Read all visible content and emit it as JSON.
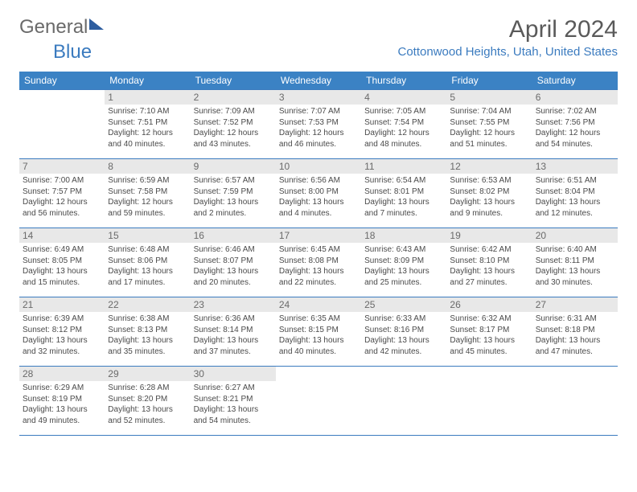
{
  "logo": {
    "general": "General",
    "blue": "Blue"
  },
  "title": "April 2024",
  "location": "Cottonwood Heights, Utah, United States",
  "colors": {
    "header_bg": "#3b82c4",
    "header_fg": "#ffffff",
    "daynum_bg": "#e8e8e8",
    "border": "#3b7bbf",
    "accent": "#3b7bbf"
  },
  "weekdays": [
    "Sunday",
    "Monday",
    "Tuesday",
    "Wednesday",
    "Thursday",
    "Friday",
    "Saturday"
  ],
  "weeks": [
    [
      null,
      {
        "n": "1",
        "sr": "7:10 AM",
        "ss": "7:51 PM",
        "dl": "12 hours and 40 minutes."
      },
      {
        "n": "2",
        "sr": "7:09 AM",
        "ss": "7:52 PM",
        "dl": "12 hours and 43 minutes."
      },
      {
        "n": "3",
        "sr": "7:07 AM",
        "ss": "7:53 PM",
        "dl": "12 hours and 46 minutes."
      },
      {
        "n": "4",
        "sr": "7:05 AM",
        "ss": "7:54 PM",
        "dl": "12 hours and 48 minutes."
      },
      {
        "n": "5",
        "sr": "7:04 AM",
        "ss": "7:55 PM",
        "dl": "12 hours and 51 minutes."
      },
      {
        "n": "6",
        "sr": "7:02 AM",
        "ss": "7:56 PM",
        "dl": "12 hours and 54 minutes."
      }
    ],
    [
      {
        "n": "7",
        "sr": "7:00 AM",
        "ss": "7:57 PM",
        "dl": "12 hours and 56 minutes."
      },
      {
        "n": "8",
        "sr": "6:59 AM",
        "ss": "7:58 PM",
        "dl": "12 hours and 59 minutes."
      },
      {
        "n": "9",
        "sr": "6:57 AM",
        "ss": "7:59 PM",
        "dl": "13 hours and 2 minutes."
      },
      {
        "n": "10",
        "sr": "6:56 AM",
        "ss": "8:00 PM",
        "dl": "13 hours and 4 minutes."
      },
      {
        "n": "11",
        "sr": "6:54 AM",
        "ss": "8:01 PM",
        "dl": "13 hours and 7 minutes."
      },
      {
        "n": "12",
        "sr": "6:53 AM",
        "ss": "8:02 PM",
        "dl": "13 hours and 9 minutes."
      },
      {
        "n": "13",
        "sr": "6:51 AM",
        "ss": "8:04 PM",
        "dl": "13 hours and 12 minutes."
      }
    ],
    [
      {
        "n": "14",
        "sr": "6:49 AM",
        "ss": "8:05 PM",
        "dl": "13 hours and 15 minutes."
      },
      {
        "n": "15",
        "sr": "6:48 AM",
        "ss": "8:06 PM",
        "dl": "13 hours and 17 minutes."
      },
      {
        "n": "16",
        "sr": "6:46 AM",
        "ss": "8:07 PM",
        "dl": "13 hours and 20 minutes."
      },
      {
        "n": "17",
        "sr": "6:45 AM",
        "ss": "8:08 PM",
        "dl": "13 hours and 22 minutes."
      },
      {
        "n": "18",
        "sr": "6:43 AM",
        "ss": "8:09 PM",
        "dl": "13 hours and 25 minutes."
      },
      {
        "n": "19",
        "sr": "6:42 AM",
        "ss": "8:10 PM",
        "dl": "13 hours and 27 minutes."
      },
      {
        "n": "20",
        "sr": "6:40 AM",
        "ss": "8:11 PM",
        "dl": "13 hours and 30 minutes."
      }
    ],
    [
      {
        "n": "21",
        "sr": "6:39 AM",
        "ss": "8:12 PM",
        "dl": "13 hours and 32 minutes."
      },
      {
        "n": "22",
        "sr": "6:38 AM",
        "ss": "8:13 PM",
        "dl": "13 hours and 35 minutes."
      },
      {
        "n": "23",
        "sr": "6:36 AM",
        "ss": "8:14 PM",
        "dl": "13 hours and 37 minutes."
      },
      {
        "n": "24",
        "sr": "6:35 AM",
        "ss": "8:15 PM",
        "dl": "13 hours and 40 minutes."
      },
      {
        "n": "25",
        "sr": "6:33 AM",
        "ss": "8:16 PM",
        "dl": "13 hours and 42 minutes."
      },
      {
        "n": "26",
        "sr": "6:32 AM",
        "ss": "8:17 PM",
        "dl": "13 hours and 45 minutes."
      },
      {
        "n": "27",
        "sr": "6:31 AM",
        "ss": "8:18 PM",
        "dl": "13 hours and 47 minutes."
      }
    ],
    [
      {
        "n": "28",
        "sr": "6:29 AM",
        "ss": "8:19 PM",
        "dl": "13 hours and 49 minutes."
      },
      {
        "n": "29",
        "sr": "6:28 AM",
        "ss": "8:20 PM",
        "dl": "13 hours and 52 minutes."
      },
      {
        "n": "30",
        "sr": "6:27 AM",
        "ss": "8:21 PM",
        "dl": "13 hours and 54 minutes."
      },
      null,
      null,
      null,
      null
    ]
  ],
  "labels": {
    "sunrise": "Sunrise: ",
    "sunset": "Sunset: ",
    "daylight": "Daylight: "
  }
}
